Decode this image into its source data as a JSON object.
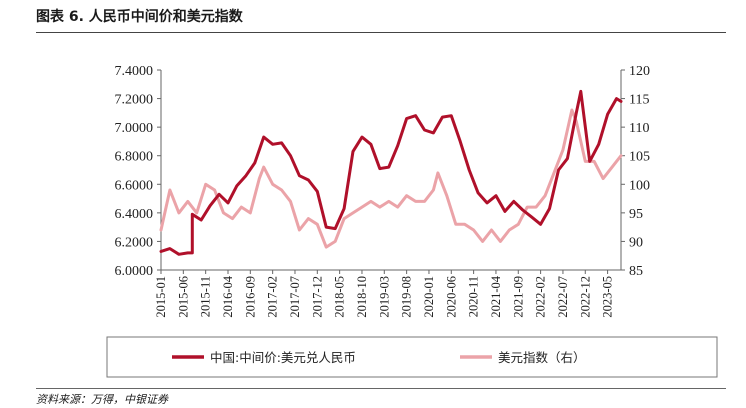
{
  "figure": {
    "title": "图表 6. 人民币中间价和美元指数",
    "source": "资料来源：万得，中银证券"
  },
  "colors": {
    "series_primary": "#B0102A",
    "series_secondary": "#EBA3A8"
  },
  "chart_data": {
    "type": "line",
    "title": "",
    "xlabel": "",
    "ylabel_left": "",
    "ylabel_right": "",
    "x_ticks": [
      "2015-01",
      "2015-06",
      "2015-11",
      "2016-04",
      "2016-09",
      "2017-02",
      "2017-07",
      "2017-12",
      "2018-05",
      "2018-10",
      "2019-03",
      "2019-08",
      "2020-01",
      "2020-06",
      "2020-11",
      "2021-04",
      "2021-09",
      "2022-02",
      "2022-07",
      "2022-12",
      "2023-05"
    ],
    "y_left_ticks": [
      "6.0000",
      "6.2000",
      "6.4000",
      "6.6000",
      "6.8000",
      "7.0000",
      "7.2000",
      "7.4000"
    ],
    "y_right_ticks": [
      "85",
      "90",
      "95",
      "100",
      "105",
      "110",
      "115",
      "120"
    ],
    "y_left_range": [
      6.0,
      7.4
    ],
    "y_right_range": [
      85,
      120
    ],
    "x_range": [
      "2015-01",
      "2023-08"
    ],
    "legend_position": "bottom",
    "grid": false,
    "series": [
      {
        "name": "中国:中间价:美元兑人民币",
        "axis": "left",
        "x": [
          "2015-01",
          "2015-03",
          "2015-05",
          "2015-07",
          "2015-08",
          "2015-08",
          "2015-10",
          "2015-12",
          "2016-02",
          "2016-04",
          "2016-06",
          "2016-08",
          "2016-10",
          "2016-12",
          "2017-02",
          "2017-04",
          "2017-06",
          "2017-08",
          "2017-10",
          "2017-12",
          "2018-02",
          "2018-04",
          "2018-06",
          "2018-08",
          "2018-10",
          "2018-12",
          "2019-02",
          "2019-04",
          "2019-06",
          "2019-08",
          "2019-10",
          "2019-12",
          "2020-02",
          "2020-04",
          "2020-06",
          "2020-08",
          "2020-10",
          "2020-12",
          "2021-02",
          "2021-04",
          "2021-06",
          "2021-08",
          "2021-10",
          "2021-12",
          "2022-02",
          "2022-04",
          "2022-06",
          "2022-08",
          "2022-10",
          "2022-11",
          "2023-01",
          "2023-03",
          "2023-05",
          "2023-07",
          "2023-08"
        ],
        "values": [
          6.13,
          6.15,
          6.11,
          6.12,
          6.12,
          6.39,
          6.35,
          6.45,
          6.53,
          6.47,
          6.59,
          6.66,
          6.75,
          6.93,
          6.88,
          6.89,
          6.8,
          6.66,
          6.63,
          6.55,
          6.3,
          6.29,
          6.43,
          6.83,
          6.93,
          6.88,
          6.71,
          6.72,
          6.87,
          7.06,
          7.08,
          6.98,
          6.96,
          7.07,
          7.08,
          6.9,
          6.7,
          6.54,
          6.47,
          6.52,
          6.41,
          6.48,
          6.42,
          6.37,
          6.32,
          6.43,
          6.7,
          6.78,
          7.1,
          7.25,
          6.76,
          6.88,
          7.09,
          7.2,
          7.18
        ]
      },
      {
        "name": "美元指数（右）",
        "axis": "right",
        "x": [
          "2015-01",
          "2015-03",
          "2015-05",
          "2015-07",
          "2015-09",
          "2015-11",
          "2016-01",
          "2016-03",
          "2016-05",
          "2016-07",
          "2016-09",
          "2016-11",
          "2016-12",
          "2017-02",
          "2017-04",
          "2017-06",
          "2017-08",
          "2017-10",
          "2017-12",
          "2018-02",
          "2018-04",
          "2018-06",
          "2018-08",
          "2018-10",
          "2018-12",
          "2019-02",
          "2019-04",
          "2019-06",
          "2019-08",
          "2019-10",
          "2019-12",
          "2020-02",
          "2020-03",
          "2020-05",
          "2020-07",
          "2020-09",
          "2020-11",
          "2021-01",
          "2021-03",
          "2021-05",
          "2021-07",
          "2021-09",
          "2021-11",
          "2022-01",
          "2022-03",
          "2022-05",
          "2022-07",
          "2022-09",
          "2022-10",
          "2022-12",
          "2023-02",
          "2023-04",
          "2023-06",
          "2023-08"
        ],
        "values": [
          92,
          99,
          95,
          97,
          95,
          100,
          99,
          95,
          94,
          96,
          95,
          101,
          103,
          100,
          99,
          97,
          92,
          94,
          93,
          89,
          90,
          94,
          95,
          96,
          97,
          96,
          97,
          96,
          98,
          97,
          97,
          99,
          102,
          98,
          93,
          93,
          92,
          90,
          92,
          90,
          92,
          93,
          96,
          96,
          98,
          102,
          106,
          113,
          111,
          104,
          104,
          101,
          103,
          105
        ]
      }
    ]
  }
}
